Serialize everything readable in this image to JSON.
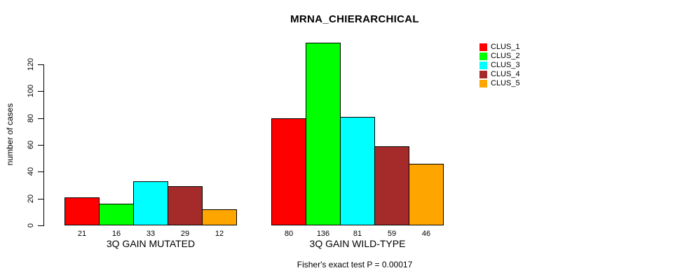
{
  "chart_data": {
    "type": "bar",
    "title": "MRNA_CHIERARCHICAL",
    "ylabel": "number of cases",
    "xlabel": "",
    "ylim": [
      0,
      136
    ],
    "yticks": [
      0,
      20,
      40,
      60,
      80,
      100,
      120
    ],
    "grid": false,
    "legend_position": "right",
    "categories": [
      "3Q GAIN MUTATED",
      "3Q GAIN WILD-TYPE"
    ],
    "series": [
      {
        "name": "CLUS_1",
        "color": "#ff0000",
        "values": [
          21,
          80
        ]
      },
      {
        "name": "CLUS_2",
        "color": "#00ff00",
        "values": [
          16,
          136
        ]
      },
      {
        "name": "CLUS_3",
        "color": "#00ffff",
        "values": [
          33,
          81
        ]
      },
      {
        "name": "CLUS_4",
        "color": "#a52a2a",
        "values": [
          29,
          59
        ]
      },
      {
        "name": "CLUS_5",
        "color": "#ffa500",
        "values": [
          12,
          46
        ]
      }
    ],
    "bar_value_labels": [
      [
        21,
        16,
        33,
        29,
        12
      ],
      [
        80,
        136,
        81,
        59,
        46
      ]
    ],
    "footnote": "Fisher's exact test P = 0.00017",
    "colors": {
      "bar_border": "#000000",
      "axis": "#000000",
      "background": "#ffffff"
    }
  }
}
